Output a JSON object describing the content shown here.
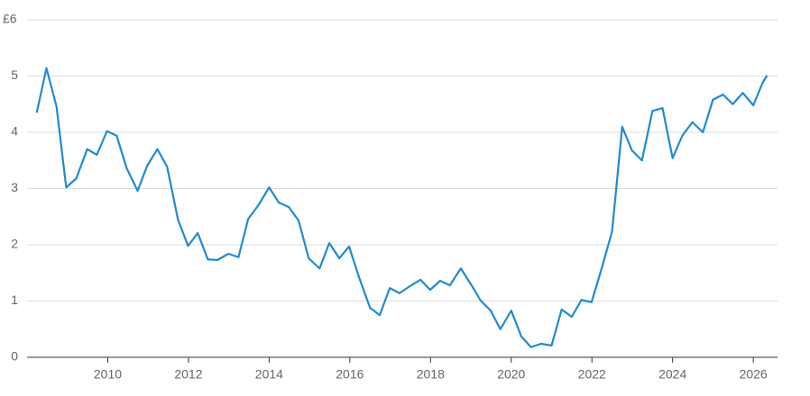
{
  "chart_data": {
    "type": "line",
    "x": [
      2008.24,
      2008.48,
      2008.73,
      2008.97,
      2009.22,
      2009.49,
      2009.73,
      2009.98,
      2010.22,
      2010.47,
      2010.74,
      2010.98,
      2011.23,
      2011.47,
      2011.74,
      2011.99,
      2012.23,
      2012.48,
      2012.72,
      2012.99,
      2013.24,
      2013.48,
      2013.73,
      2014.0,
      2014.24,
      2014.49,
      2014.73,
      2014.98,
      2015.25,
      2015.49,
      2015.74,
      2015.98,
      2016.23,
      2016.5,
      2016.74,
      2016.99,
      2017.23,
      2017.48,
      2017.75,
      2017.99,
      2018.24,
      2018.48,
      2018.75,
      2019.0,
      2019.24,
      2019.49,
      2019.73,
      2020.0,
      2020.25,
      2020.49,
      2020.74,
      2021.0,
      2021.25,
      2021.5,
      2021.74,
      2021.99,
      2022.25,
      2022.5,
      2022.75,
      2022.99,
      2023.24,
      2023.5,
      2023.75,
      2024.0,
      2024.24,
      2024.49,
      2024.75,
      2025.0,
      2025.25,
      2025.49,
      2025.74,
      2026.0,
      2026.23,
      2026.34
    ],
    "series": [
      {
        "color": "#1f8ad6",
        "values": [
          4.35,
          5.14,
          4.46,
          3.02,
          3.18,
          3.7,
          3.6,
          4.02,
          3.94,
          3.36,
          2.96,
          3.41,
          3.7,
          3.39,
          2.45,
          1.98,
          2.21,
          1.74,
          1.73,
          1.84,
          1.78,
          2.46,
          2.7,
          3.02,
          2.75,
          2.67,
          2.43,
          1.76,
          1.58,
          2.03,
          1.76,
          1.97,
          1.42,
          0.88,
          0.75,
          1.23,
          1.14,
          1.26,
          1.38,
          1.2,
          1.36,
          1.28,
          1.58,
          1.3,
          1.01,
          0.83,
          0.5,
          0.83,
          0.37,
          0.18,
          0.24,
          0.21,
          0.85,
          0.72,
          1.02,
          0.98,
          1.6,
          2.24,
          4.1,
          3.68,
          3.5,
          4.38,
          4.43,
          3.54,
          3.94,
          4.18,
          4.0,
          4.58,
          4.67,
          4.5,
          4.7,
          4.48,
          4.88,
          5.01
        ]
      }
    ],
    "xlim": [
      2008,
      2026.6
    ],
    "xticks": [
      2010,
      2012,
      2014,
      2016,
      2018,
      2020,
      2022,
      2024,
      2026
    ],
    "ylim": [
      0,
      6
    ],
    "yticks": [
      0,
      1,
      2,
      3,
      4,
      5,
      {
        "value": 6,
        "label": "£6"
      }
    ],
    "grid": true
  }
}
